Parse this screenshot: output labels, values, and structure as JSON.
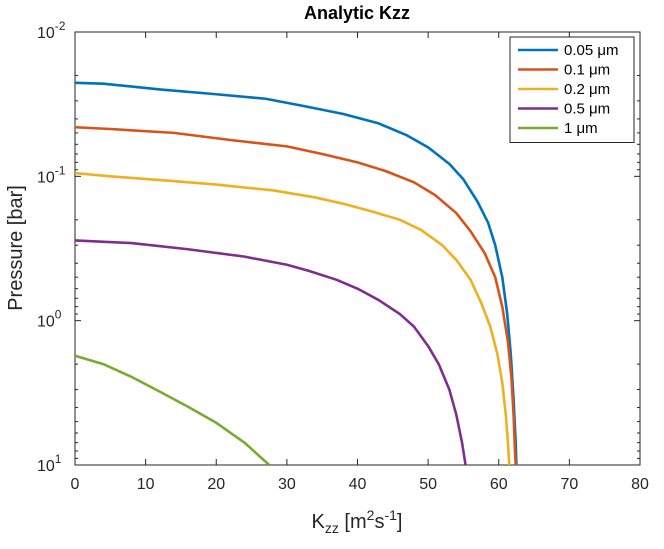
{
  "chart_data": {
    "type": "line",
    "title": "Analytic Kzz",
    "xlabel": {
      "base": "K",
      "sub": "zz",
      "unit_open": " [m",
      "sup1": "2",
      "mid": "s",
      "sup2": "-1",
      "unit_close": "]"
    },
    "ylabel": "Pressure [bar]",
    "xlim": [
      0,
      80
    ],
    "ylim": [
      0.01,
      10
    ],
    "y_scale": "log",
    "y_reversed": true,
    "grid": false,
    "legend_position": "top-right",
    "x_ticks": [
      {
        "value": 0,
        "label": "0"
      },
      {
        "value": 10,
        "label": "10"
      },
      {
        "value": 20,
        "label": "20"
      },
      {
        "value": 30,
        "label": "30"
      },
      {
        "value": 40,
        "label": "40"
      },
      {
        "value": 50,
        "label": "50"
      },
      {
        "value": 60,
        "label": "60"
      },
      {
        "value": 70,
        "label": "70"
      },
      {
        "value": 80,
        "label": "80"
      }
    ],
    "y_ticks": [
      {
        "value": 0.01,
        "base": "10",
        "exp": "-2"
      },
      {
        "value": 0.1,
        "base": "10",
        "exp": "-1"
      },
      {
        "value": 1,
        "base": "10",
        "exp": "0"
      },
      {
        "value": 10,
        "base": "10",
        "exp": "1"
      }
    ],
    "series": [
      {
        "name": "0.05 μm",
        "color": "#0072BD",
        "x": [
          0,
          4,
          12,
          20,
          27,
          33,
          38,
          43,
          47,
          50,
          53,
          55,
          57,
          58.5,
          59.5,
          60.5,
          61.2,
          61.7,
          62.1,
          62.4,
          62.5
        ],
        "y": [
          0.0225,
          0.0228,
          0.025,
          0.027,
          0.029,
          0.033,
          0.037,
          0.043,
          0.052,
          0.063,
          0.082,
          0.105,
          0.15,
          0.21,
          0.3,
          0.5,
          0.9,
          1.7,
          3.5,
          7,
          10
        ]
      },
      {
        "name": "0.1 μm",
        "color": "#D95319",
        "x": [
          0,
          5,
          14,
          22,
          30,
          35,
          40,
          44,
          48,
          51,
          54,
          56,
          58,
          59.5,
          60.5,
          61.3,
          61.8,
          62.1,
          62.3,
          62.4
        ],
        "y": [
          0.0457,
          0.047,
          0.05,
          0.056,
          0.062,
          0.07,
          0.08,
          0.092,
          0.11,
          0.135,
          0.18,
          0.24,
          0.34,
          0.5,
          0.8,
          1.4,
          2.5,
          4.5,
          8,
          10
        ]
      },
      {
        "name": "0.2 μm",
        "color": "#EDB120",
        "x": [
          0,
          5,
          13,
          20,
          28,
          34,
          38,
          42,
          46,
          49,
          52,
          54,
          56,
          57.5,
          58.8,
          59.8,
          60.5,
          61,
          61.3,
          61.5
        ],
        "y": [
          0.095,
          0.1,
          0.107,
          0.114,
          0.125,
          0.14,
          0.155,
          0.175,
          0.2,
          0.235,
          0.3,
          0.38,
          0.52,
          0.75,
          1.1,
          1.7,
          2.7,
          4.5,
          7,
          10
        ]
      },
      {
        "name": "0.5 μm",
        "color": "#7E2F8E",
        "x": [
          0,
          8,
          16,
          24,
          30,
          33,
          37,
          40,
          43,
          46,
          48,
          50,
          51.5,
          53,
          54,
          54.8,
          55.3
        ],
        "y": [
          0.278,
          0.29,
          0.32,
          0.36,
          0.41,
          0.45,
          0.52,
          0.6,
          0.72,
          0.9,
          1.1,
          1.5,
          2,
          3,
          4.5,
          7,
          10
        ]
      },
      {
        "name": "1 μm",
        "color": "#77AC30",
        "x": [
          0,
          4,
          8,
          12,
          16,
          20,
          24,
          27.5
        ],
        "y": [
          1.75,
          2.0,
          2.45,
          3.1,
          3.95,
          5.1,
          7,
          10
        ]
      }
    ]
  }
}
